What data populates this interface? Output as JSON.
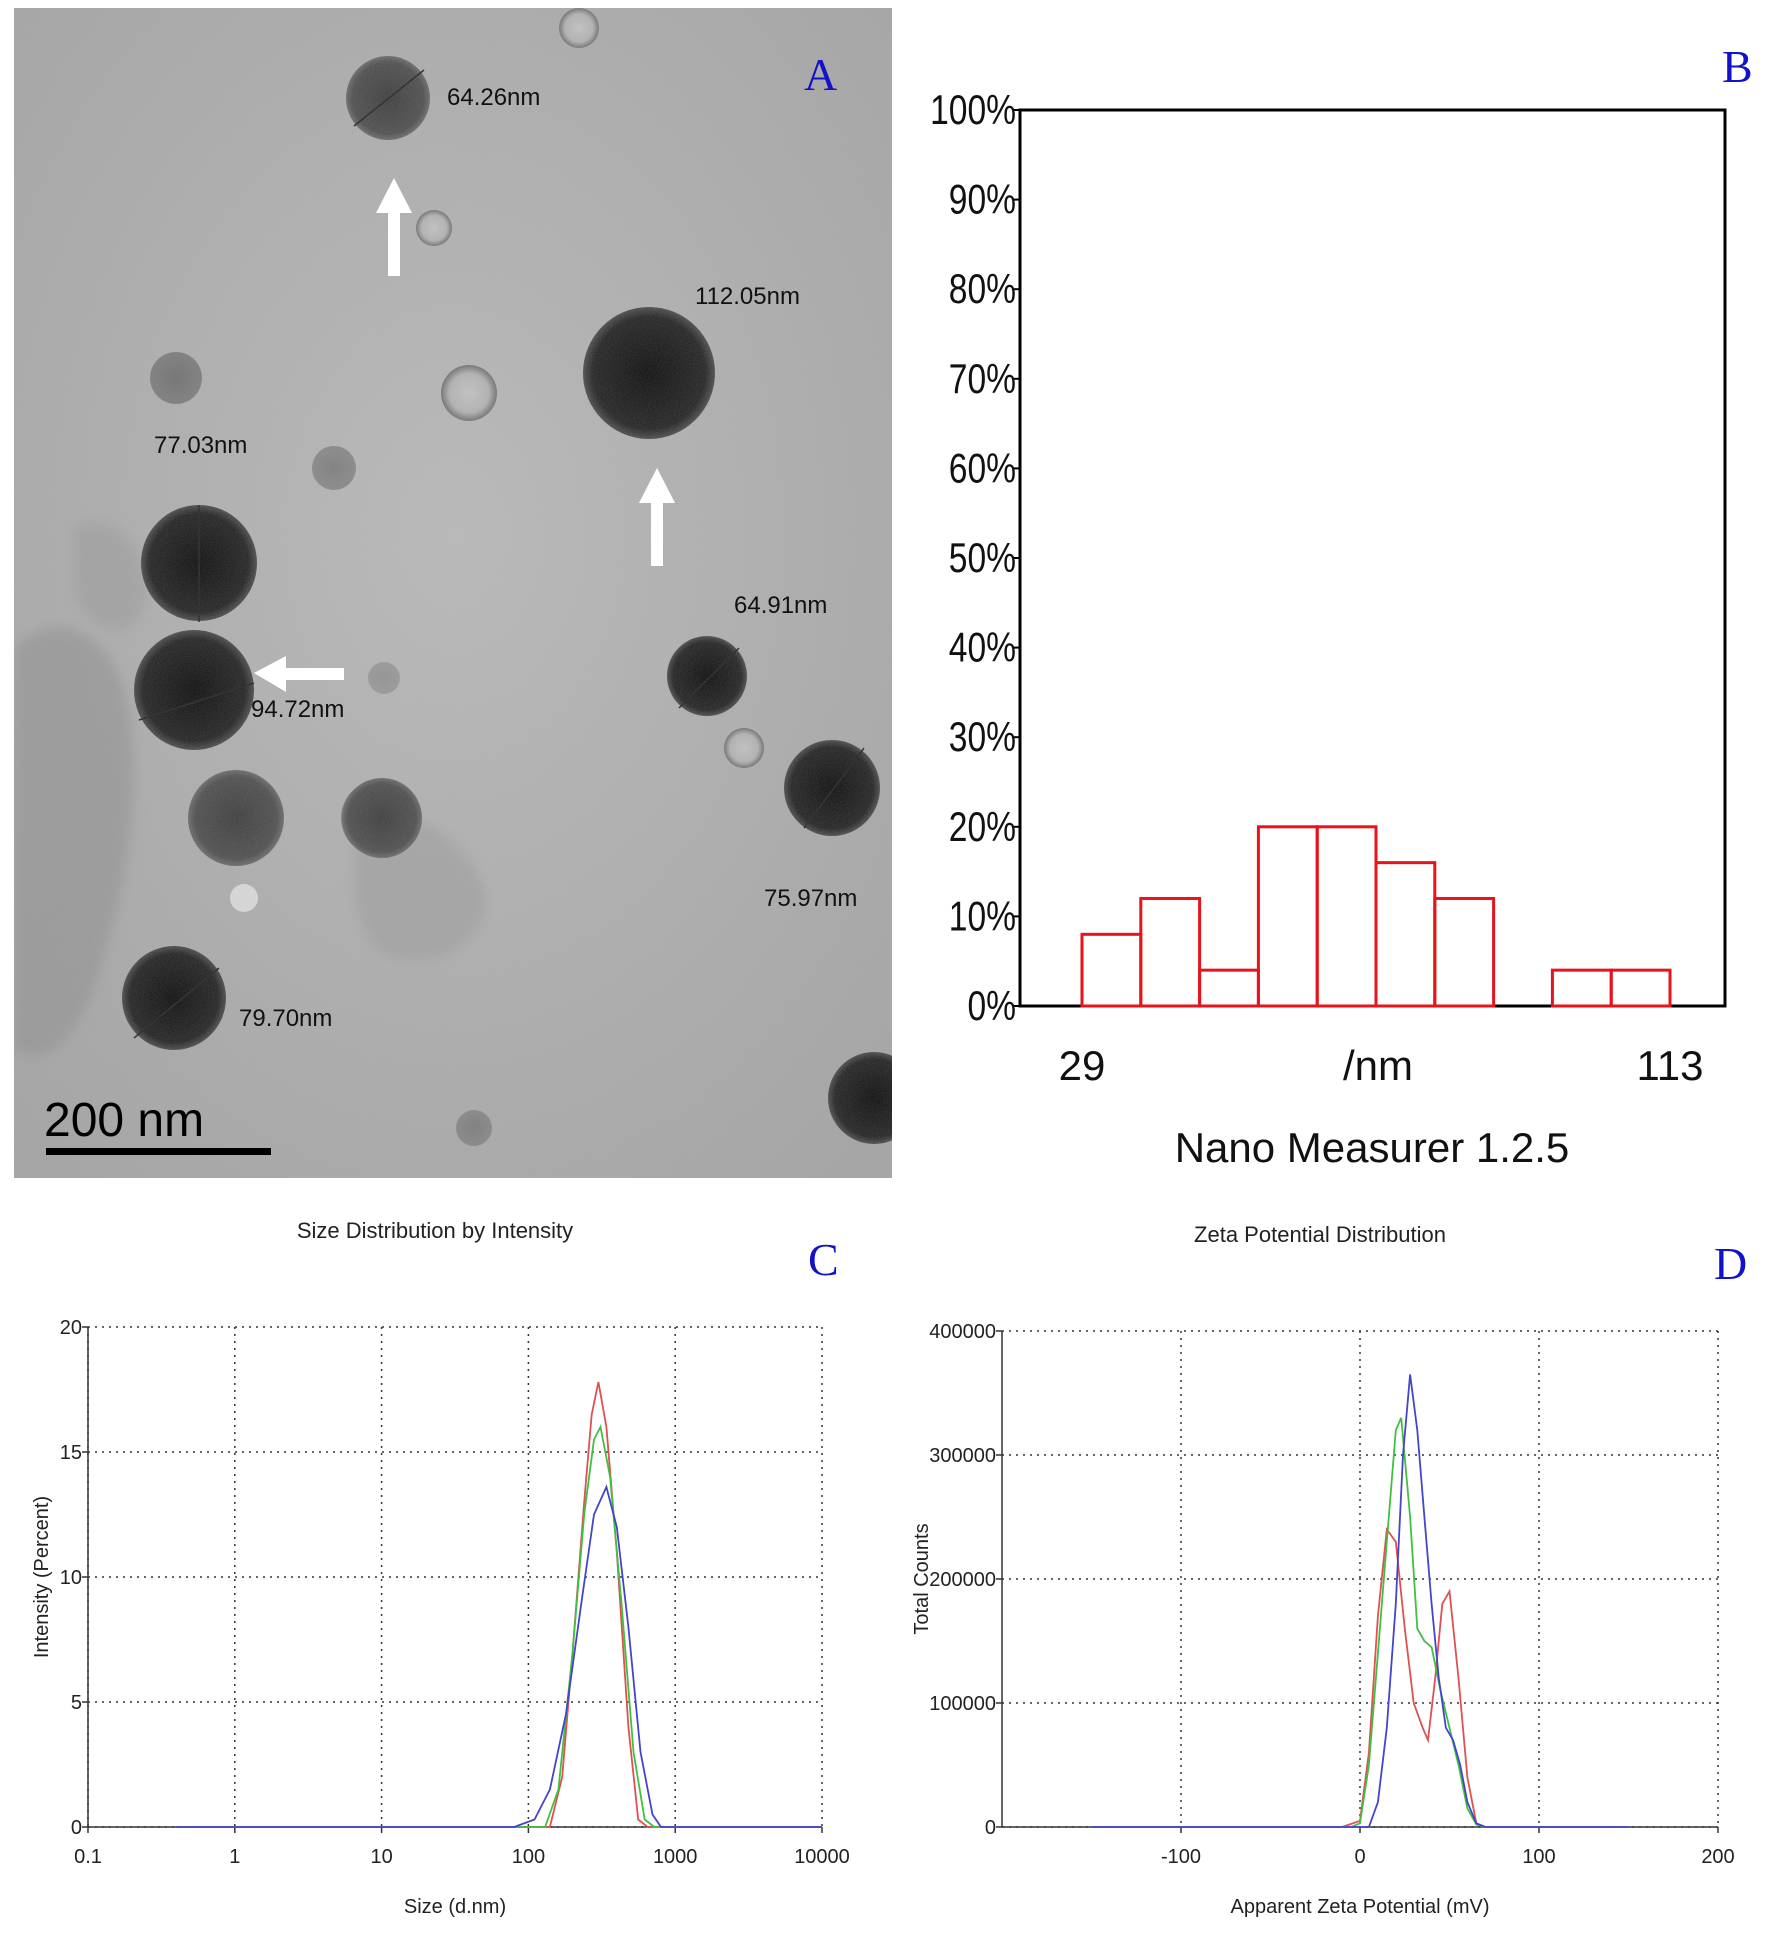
{
  "panel_labels": {
    "A": "A",
    "B": "B",
    "C": "C",
    "D": "D"
  },
  "tem": {
    "measurements": [
      "64.26nm",
      "112.05nm",
      "77.03nm",
      "94.72nm",
      "64.91nm",
      "75.97nm",
      "79.70nm"
    ],
    "scale_bar": "200 nm"
  },
  "chart_data": [
    {
      "id": "B",
      "type": "bar",
      "xlabel": "/nm",
      "caption": "Nano Measurer 1.2.5",
      "x_ticks": [
        "29",
        "113"
      ],
      "y_ticks": [
        "0%",
        "10%",
        "20%",
        "30%",
        "40%",
        "50%",
        "60%",
        "70%",
        "80%",
        "90%",
        "100%"
      ],
      "ylim": [
        0,
        100
      ],
      "bins": [
        {
          "from": 29,
          "to": 37.4,
          "value": 8
        },
        {
          "from": 37.4,
          "to": 45.8,
          "value": 12
        },
        {
          "from": 45.8,
          "to": 54.2,
          "value": 4
        },
        {
          "from": 54.2,
          "to": 62.6,
          "value": 20
        },
        {
          "from": 62.6,
          "to": 71.0,
          "value": 20
        },
        {
          "from": 71.0,
          "to": 79.4,
          "value": 16
        },
        {
          "from": 79.4,
          "to": 87.8,
          "value": 12
        },
        {
          "from": 87.8,
          "to": 96.2,
          "value": 0
        },
        {
          "from": 96.2,
          "to": 104.6,
          "value": 4
        },
        {
          "from": 104.6,
          "to": 113,
          "value": 4
        }
      ],
      "colors": {
        "bars": "#e8141c",
        "frame": "#000000"
      }
    },
    {
      "id": "C",
      "type": "line",
      "title": "Size Distribution by Intensity",
      "xlabel": "Size (d.nm)",
      "ylabel": "Intensity (Percent)",
      "xscale": "log",
      "xlim": [
        0.1,
        10000
      ],
      "ylim": [
        0,
        20
      ],
      "x_ticks": [
        "0.1",
        "1",
        "10",
        "100",
        "1000",
        "10000"
      ],
      "y_ticks": [
        "0",
        "5",
        "10",
        "15",
        "20"
      ],
      "grid": true,
      "series": [
        {
          "color": "#e05050",
          "points": [
            [
              0.4,
              0
            ],
            [
              140,
              0
            ],
            [
              170,
              2
            ],
            [
              200,
              7
            ],
            [
              240,
              13
            ],
            [
              270,
              16.5
            ],
            [
              300,
              17.8
            ],
            [
              340,
              16
            ],
            [
              400,
              11
            ],
            [
              480,
              4
            ],
            [
              560,
              0.3
            ],
            [
              650,
              0
            ],
            [
              10000,
              0
            ]
          ]
        },
        {
          "color": "#40c040",
          "points": [
            [
              0.4,
              0
            ],
            [
              130,
              0
            ],
            [
              160,
              1.5
            ],
            [
              200,
              7
            ],
            [
              240,
              12.5
            ],
            [
              280,
              15.5
            ],
            [
              310,
              16
            ],
            [
              360,
              14
            ],
            [
              430,
              9
            ],
            [
              520,
              3
            ],
            [
              620,
              0.3
            ],
            [
              720,
              0
            ],
            [
              10000,
              0
            ]
          ]
        },
        {
          "color": "#4444cc",
          "points": [
            [
              0.4,
              0
            ],
            [
              80,
              0
            ],
            [
              110,
              0.3
            ],
            [
              140,
              1.5
            ],
            [
              180,
              4.5
            ],
            [
              230,
              9
            ],
            [
              280,
              12.5
            ],
            [
              340,
              13.6
            ],
            [
              400,
              12
            ],
            [
              480,
              8
            ],
            [
              580,
              3
            ],
            [
              700,
              0.5
            ],
            [
              800,
              0
            ],
            [
              10000,
              0
            ]
          ]
        }
      ]
    },
    {
      "id": "D",
      "type": "line",
      "title": "Zeta Potential Distribution",
      "xlabel": "Apparent Zeta Potential (mV)",
      "ylabel": "Total Counts",
      "xlim": [
        -200,
        200
      ],
      "ylim": [
        0,
        400000
      ],
      "x_ticks": [
        "-100",
        "0",
        "100",
        "200"
      ],
      "y_ticks": [
        "0",
        "100000",
        "200000",
        "300000",
        "400000"
      ],
      "grid": true,
      "series": [
        {
          "color": "#e05050",
          "points": [
            [
              -150,
              0
            ],
            [
              -10,
              0
            ],
            [
              0,
              5000
            ],
            [
              5,
              60000
            ],
            [
              10,
              170000
            ],
            [
              15,
              240000
            ],
            [
              20,
              230000
            ],
            [
              25,
              160000
            ],
            [
              30,
              100000
            ],
            [
              35,
              80000
            ],
            [
              38,
              70000
            ],
            [
              42,
              120000
            ],
            [
              46,
              180000
            ],
            [
              50,
              190000
            ],
            [
              55,
              120000
            ],
            [
              60,
              40000
            ],
            [
              65,
              3000
            ],
            [
              70,
              0
            ],
            [
              150,
              0
            ]
          ]
        },
        {
          "color": "#40c040",
          "points": [
            [
              -150,
              0
            ],
            [
              -5,
              0
            ],
            [
              0,
              3000
            ],
            [
              5,
              50000
            ],
            [
              10,
              140000
            ],
            [
              15,
              230000
            ],
            [
              20,
              320000
            ],
            [
              23,
              330000
            ],
            [
              28,
              250000
            ],
            [
              32,
              160000
            ],
            [
              36,
              150000
            ],
            [
              40,
              145000
            ],
            [
              45,
              110000
            ],
            [
              50,
              80000
            ],
            [
              55,
              50000
            ],
            [
              60,
              15000
            ],
            [
              65,
              2000
            ],
            [
              70,
              0
            ],
            [
              150,
              0
            ]
          ]
        },
        {
          "color": "#4444cc",
          "points": [
            [
              -150,
              0
            ],
            [
              5,
              0
            ],
            [
              10,
              20000
            ],
            [
              15,
              80000
            ],
            [
              20,
              180000
            ],
            [
              24,
              300000
            ],
            [
              28,
              365000
            ],
            [
              32,
              320000
            ],
            [
              36,
              250000
            ],
            [
              40,
              180000
            ],
            [
              44,
              120000
            ],
            [
              48,
              80000
            ],
            [
              52,
              70000
            ],
            [
              56,
              50000
            ],
            [
              60,
              20000
            ],
            [
              65,
              3000
            ],
            [
              70,
              0
            ],
            [
              150,
              0
            ]
          ]
        }
      ]
    }
  ]
}
